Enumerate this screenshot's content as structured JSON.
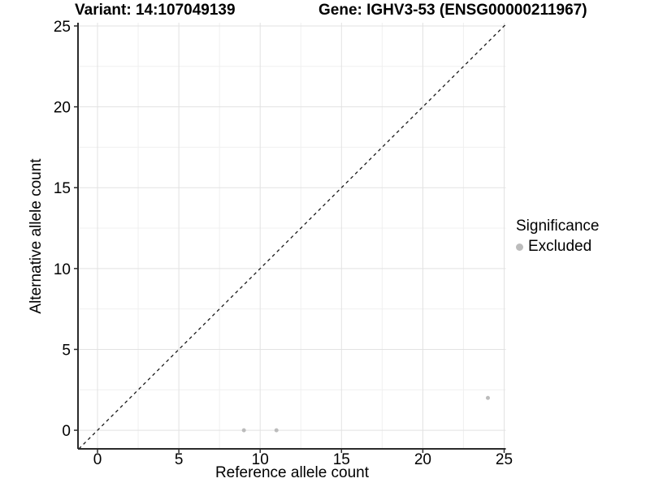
{
  "figure": {
    "title_left": "Variant: 14:107049139",
    "title_right": "Gene: IGHV3-53 (ENSG00000211967)"
  },
  "chart_data": {
    "type": "scatter",
    "title": "Variant: 14:107049139 — Gene: IGHV3-53 (ENSG00000211967)",
    "xlabel": "Reference allele count",
    "ylabel": "Alternative allele count",
    "xlim": [
      -1.2,
      25.1
    ],
    "ylim": [
      -1.15,
      25.2
    ],
    "x_ticks": [
      0,
      5,
      10,
      15,
      20,
      25
    ],
    "y_ticks": [
      0,
      5,
      10,
      15,
      20,
      25
    ],
    "x_minor_ticks": [
      2.5,
      7.5,
      12.5,
      17.5,
      22.5
    ],
    "y_minor_ticks": [
      2.5,
      7.5,
      12.5,
      17.5,
      22.5
    ],
    "grid": "major+minor",
    "legend_position": "right",
    "series": [
      {
        "name": "Excluded",
        "color": "#bcbcbc",
        "points": [
          {
            "x": 9,
            "y": 0
          },
          {
            "x": 11,
            "y": 0
          },
          {
            "x": 24,
            "y": 2
          }
        ]
      }
    ],
    "reference_line": {
      "type": "identity",
      "slope": 1,
      "intercept": 0,
      "style": "dashed",
      "color": "#1a1a1a"
    }
  },
  "legend": {
    "title": "Significance",
    "items": [
      {
        "label": "Excluded",
        "color": "#bcbcbc",
        "marker": "circle-icon"
      }
    ]
  },
  "colors": {
    "background": "#ffffff",
    "axis_line": "#2b2b2b",
    "grid_major": "#e2e2e2",
    "grid_minor": "#f0f0f0",
    "text": "#000000"
  }
}
